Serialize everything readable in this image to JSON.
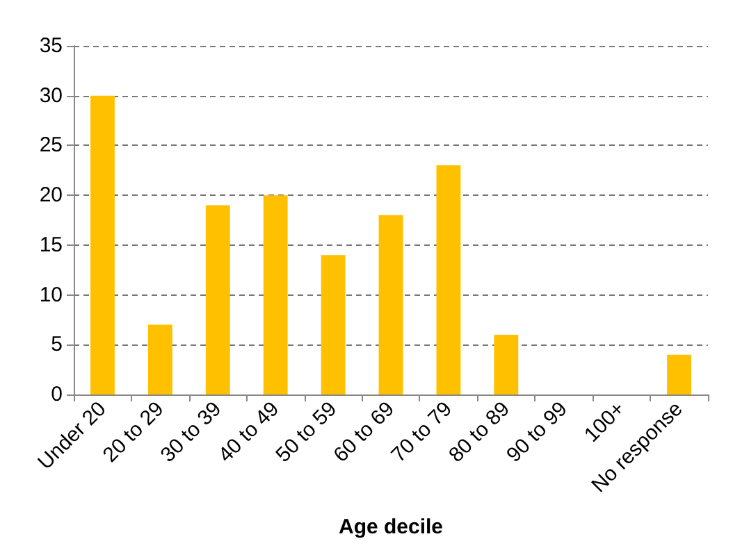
{
  "chart_data": {
    "type": "bar",
    "xlabel": "Age decile",
    "categories": [
      "Under 20",
      "20 to 29",
      "30 to 39",
      "40 to 49",
      "50 to 59",
      "60 to 69",
      "70 to 79",
      "80 to 89",
      "90 to 99",
      "100+",
      "No response"
    ],
    "values": [
      30,
      7,
      19,
      20,
      14,
      18,
      23,
      6,
      0,
      0,
      4
    ],
    "color": "#ffc000",
    "ylim": [
      0,
      35
    ],
    "yticks": [
      0,
      5,
      10,
      15,
      20,
      25,
      30,
      35
    ],
    "grid": "y"
  }
}
